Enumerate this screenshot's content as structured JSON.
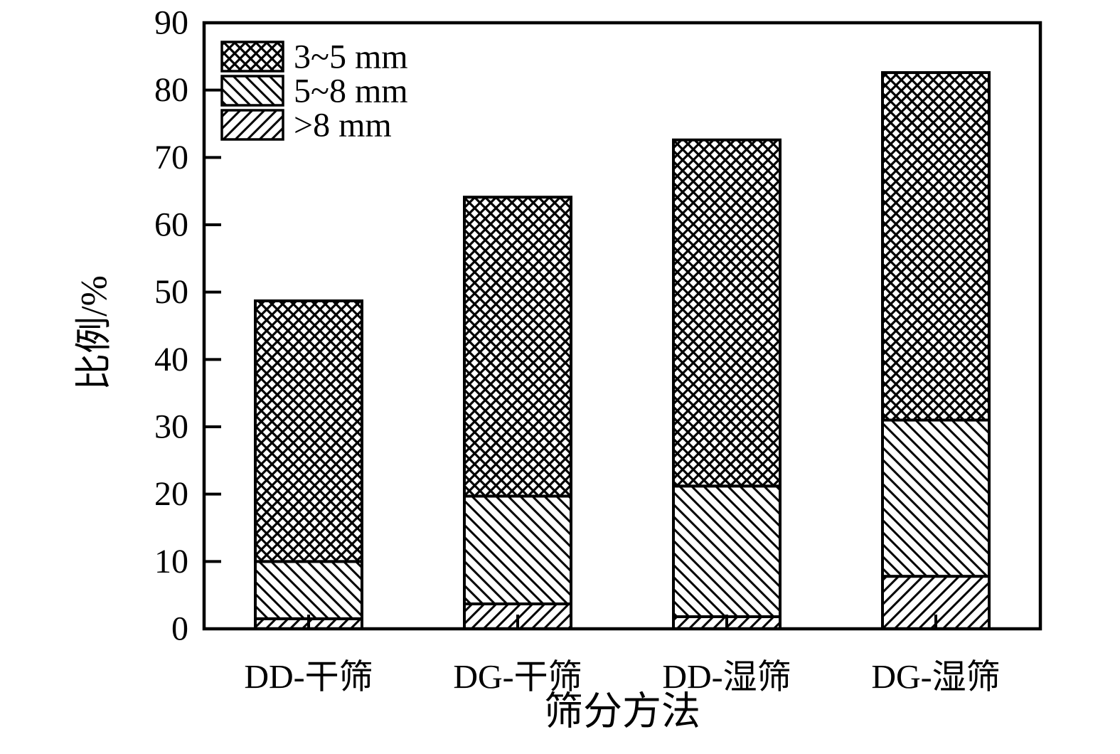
{
  "chart_data": {
    "type": "bar",
    "stacked": true,
    "title": "",
    "xlabel": "筛分方法",
    "ylabel": "比例/%",
    "ylim": [
      0,
      90
    ],
    "yticks": [
      0,
      10,
      20,
      30,
      40,
      50,
      60,
      70,
      80,
      90
    ],
    "grid": false,
    "categories": [
      "DD-干筛",
      "DG-干筛",
      "DD-湿筛",
      "DG-湿筛"
    ],
    "series": [
      {
        "name": ">8 mm",
        "pattern": "diagonal-forward",
        "values": [
          1.5,
          3.7,
          1.8,
          7.8
        ]
      },
      {
        "name": "5~8 mm",
        "pattern": "diagonal-back",
        "values": [
          8.5,
          16.0,
          19.4,
          23.2
        ]
      },
      {
        "name": "3~5 mm",
        "pattern": "crosshatch",
        "values": [
          38.7,
          44.4,
          51.4,
          51.6
        ]
      }
    ],
    "stack_totals": [
      48.7,
      64.1,
      72.6,
      82.6
    ],
    "legend": {
      "position": "top-left-inside",
      "order": [
        "3~5 mm",
        "5~8 mm",
        ">8 mm"
      ]
    },
    "colors": {
      "foreground": "#000000",
      "background": "#ffffff"
    }
  }
}
